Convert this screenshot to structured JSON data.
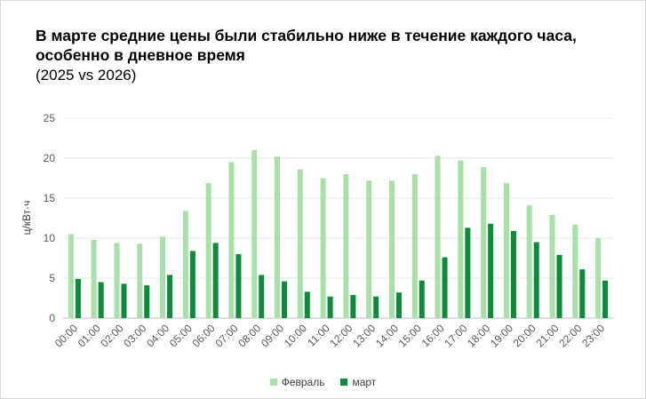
{
  "chart_data": {
    "type": "bar",
    "title": "В марте средние цены были стабильно ниже в течение каждого часа, особенно в дневное время",
    "subtitle": "(2025 vs 2026)",
    "ylabel": "ц/кВт·ч",
    "ylim": [
      0,
      25
    ],
    "yticks": [
      "0",
      "5",
      "10",
      "15",
      "20",
      "25"
    ],
    "grid": true,
    "legend_position": "bottom",
    "categories": [
      "00:00",
      "01:00",
      "02:00",
      "03:00",
      "04:00",
      "05:00",
      "06:00",
      "07:00",
      "08:00",
      "09:00",
      "10:00",
      "11:00",
      "12:00",
      "13:00",
      "14:00",
      "15:00",
      "16:00",
      "17:00",
      "18:00",
      "19:00",
      "20:00",
      "21:00",
      "22:00",
      "23:00"
    ],
    "series": [
      {
        "name": "Февраль",
        "color": "#a9dfa9",
        "values": [
          10.5,
          9.8,
          9.4,
          9.3,
          10.2,
          13.4,
          16.9,
          19.5,
          21.0,
          20.2,
          18.6,
          17.5,
          18.0,
          17.2,
          17.2,
          18.0,
          20.3,
          19.7,
          18.9,
          16.9,
          14.1,
          12.9,
          11.7,
          10.0
        ]
      },
      {
        "name": "март",
        "color": "#0f8a3c",
        "values": [
          4.9,
          4.5,
          4.3,
          4.1,
          5.4,
          8.4,
          9.4,
          8.0,
          5.4,
          4.6,
          3.3,
          2.7,
          2.9,
          2.7,
          3.2,
          4.7,
          7.6,
          11.3,
          11.8,
          10.9,
          9.5,
          7.9,
          6.1,
          4.7
        ]
      }
    ]
  }
}
